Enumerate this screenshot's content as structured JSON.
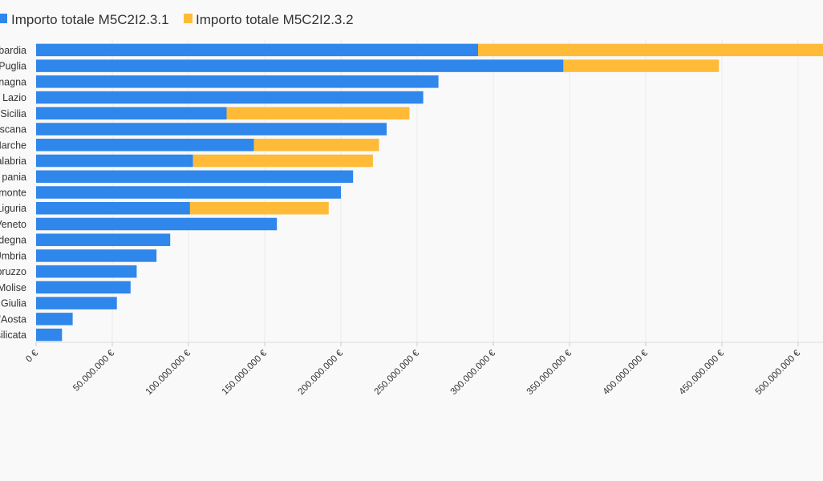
{
  "chart_data": {
    "type": "bar",
    "orientation": "horizontal",
    "stacked": true,
    "legend_position": "top-left",
    "grid": true,
    "xlim": [
      0,
      520000000
    ],
    "x_ticks": [
      0,
      50000000,
      100000000,
      150000000,
      200000000,
      250000000,
      300000000,
      350000000,
      400000000,
      450000000,
      500000000
    ],
    "x_tick_labels": [
      "0 €",
      "50.000.000 €",
      "100.000.000 €",
      "150.000.000 €",
      "200.000.000 €",
      "250.000.000 €",
      "300.000.000 €",
      "350.000.000 €",
      "400.000.000 €",
      "450.000.000 €",
      "500.000.000 €"
    ],
    "categories": [
      "bardia",
      "Puglia",
      "nagna",
      "Lazio",
      "Sicilia",
      "scana",
      "Marche",
      "alabria",
      "pania",
      "monte",
      "Liguria",
      "Veneto",
      "degna",
      "Umbria",
      "bruzzo",
      "Molise",
      "Giulia",
      "'Aosta",
      "silicata"
    ],
    "series": [
      {
        "name": "Importo totale M5C2I2.3.1",
        "color": "#2f86eb",
        "values": [
          290000000,
          346000000,
          264000000,
          254000000,
          125000000,
          230000000,
          143000000,
          103000000,
          208000000,
          200000000,
          101000000,
          158000000,
          88000000,
          79000000,
          66000000,
          62000000,
          53000000,
          24000000,
          17000000
        ]
      },
      {
        "name": "Importo totale M5C2I2.3.2",
        "color": "#ffbb38",
        "values": [
          235000000,
          102000000,
          0,
          0,
          120000000,
          0,
          82000000,
          118000000,
          0,
          0,
          91000000,
          0,
          0,
          0,
          0,
          0,
          0,
          0,
          0
        ]
      }
    ]
  }
}
